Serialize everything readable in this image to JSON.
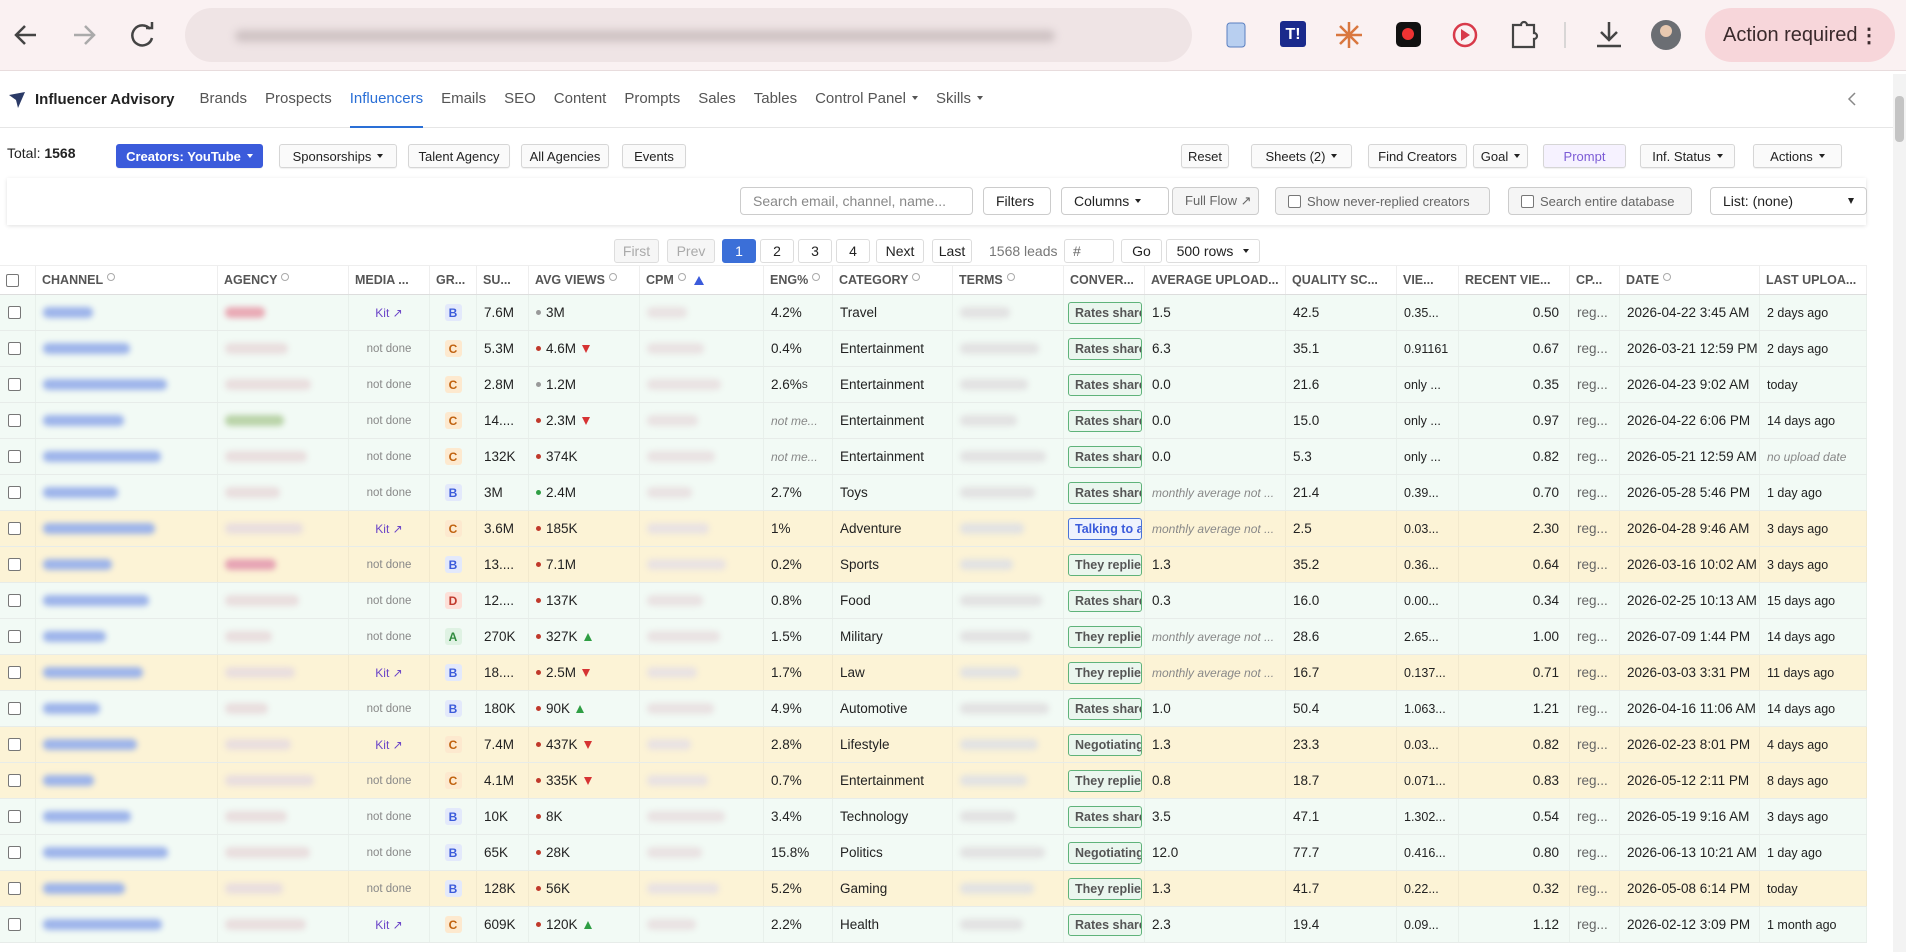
{
  "browser": {
    "action_required": "Action required"
  },
  "nav": {
    "brand": "Influencer Advisory",
    "items": [
      {
        "label": "Brands"
      },
      {
        "label": "Prospects"
      },
      {
        "label": "Influencers",
        "active": true
      },
      {
        "label": "Emails"
      },
      {
        "label": "SEO"
      },
      {
        "label": "Content"
      },
      {
        "label": "Prompts"
      },
      {
        "label": "Sales"
      },
      {
        "label": "Tables"
      },
      {
        "label": "Control Panel",
        "dropdown": true
      },
      {
        "label": "Skills",
        "dropdown": true
      }
    ]
  },
  "toolbar": {
    "total_label": "Total:",
    "total": 1568,
    "left": [
      {
        "label": "Creators: YouTube",
        "dropdown": true,
        "primary": true
      },
      {
        "label": "Sponsorships",
        "dropdown": true
      },
      {
        "label": "Talent Agency"
      },
      {
        "label": "All Agencies"
      },
      {
        "label": "Events"
      }
    ],
    "right": [
      {
        "label": "Reset"
      },
      {
        "label": "Sheets (2)",
        "dropdown": true
      },
      {
        "label": "Find Creators"
      },
      {
        "label": "Goal",
        "dropdown": true
      },
      {
        "label": "Prompt",
        "accent": true
      },
      {
        "label": "Inf. Status",
        "dropdown": true
      },
      {
        "label": "Actions",
        "dropdown": true
      }
    ]
  },
  "search": {
    "placeholder": "Search email, channel, name...",
    "filters": "Filters",
    "columns": "Columns",
    "full_flow": "Full Flow ↗",
    "never_replied": "Show never-replied creators",
    "entire_db": "Search entire database",
    "list": "List: (none)"
  },
  "pagination": {
    "first": "First",
    "prev": "Prev",
    "pages": [
      1,
      2,
      3,
      4
    ],
    "current": 1,
    "next": "Next",
    "last": "Last",
    "leads": "1568 leads",
    "page_input": "#",
    "go": "Go",
    "rows": "500 rows"
  },
  "table": {
    "columns": [
      {
        "label": "CHANNEL",
        "info": true
      },
      {
        "label": "AGENCY",
        "info": true
      },
      {
        "label": "MEDIA ..."
      },
      {
        "label": "GR..."
      },
      {
        "label": "SU..."
      },
      {
        "label": "AVG VIEWS",
        "info": true
      },
      {
        "label": "CPM",
        "info": true,
        "sort": "asc"
      },
      {
        "label": "ENG%",
        "info": true
      },
      {
        "label": "CATEGORY",
        "info": true
      },
      {
        "label": "TERMS",
        "info": true
      },
      {
        "label": "CONVER..."
      },
      {
        "label": "AVERAGE UPLOAD..."
      },
      {
        "label": "QUALITY SC..."
      },
      {
        "label": "VIE..."
      },
      {
        "label": "RECENT VIE..."
      },
      {
        "label": "CP..."
      },
      {
        "label": "DATE",
        "info": true
      },
      {
        "label": "LAST UPLOA..."
      }
    ],
    "rows": [
      {
        "media": "Kit ↗",
        "grade": "B",
        "subs": "7.6M",
        "avg_views": "3M",
        "dot": "grey",
        "eng": "4.2%",
        "category": "Travel",
        "stage": "Rates share",
        "avg_upload": "1.5",
        "quality": "42.5",
        "views": "0.35...",
        "recent": "0.50",
        "cp": "reg...",
        "date": "2026-04-22 3:45 AM",
        "last_upload": "2 days ago"
      },
      {
        "media": "not done",
        "grade": "C",
        "subs": "5.3M",
        "avg_views": "4.6M",
        "dot": "red",
        "trend": "down",
        "eng": "0.4%",
        "category": "Entertainment",
        "stage": "Rates share",
        "avg_upload": "6.3",
        "quality": "35.1",
        "views": "0.91161",
        "recent": "0.67",
        "cp": "reg...",
        "date": "2026-03-21 12:59 PM",
        "last_upload": "2 days ago"
      },
      {
        "media": "not done",
        "grade": "C",
        "subs": "2.8M",
        "avg_views": "1.2M",
        "dot": "grey",
        "eng": "2.6%",
        "eng_sup": "S",
        "category": "Entertainment",
        "stage": "Rates share",
        "avg_upload": "0.0",
        "quality": "21.6",
        "views": "only ...",
        "recent": "0.35",
        "cp": "reg...",
        "date": "2026-04-23 9:02 AM",
        "last_upload": "today"
      },
      {
        "media": "not done",
        "grade": "C",
        "subs": "14....",
        "avg_views": "2.3M",
        "dot": "red",
        "trend": "down",
        "eng_note": "not me...",
        "category": "Entertainment",
        "stage": "Rates share",
        "avg_upload": "0.0",
        "quality": "15.0",
        "views": "only ...",
        "recent": "0.97",
        "cp": "reg...",
        "date": "2026-04-22 6:06 PM",
        "last_upload": "14 days ago"
      },
      {
        "media": "not done",
        "grade": "C",
        "subs": "132K",
        "avg_views": "374K",
        "dot": "red",
        "eng_note": "not me...",
        "category": "Entertainment",
        "stage": "Rates share",
        "avg_upload": "0.0",
        "quality": "5.3",
        "views": "only ...",
        "recent": "0.82",
        "cp": "reg...",
        "date": "2026-05-21 12:59 AM",
        "last_upload_note": "no upload date"
      },
      {
        "media": "not done",
        "grade": "B",
        "subs": "3M",
        "avg_views": "2.4M",
        "dot": "green",
        "eng": "2.7%",
        "category": "Toys",
        "stage": "Rates share",
        "avg_upload_note": "monthly average not ...",
        "quality": "21.4",
        "views": "0.39...",
        "recent": "0.70",
        "cp": "reg...",
        "date": "2026-05-28 5:46 PM",
        "last_upload": "1 day ago"
      },
      {
        "media": "Kit ↗",
        "grade": "C",
        "subs": "3.6M",
        "avg_views": "185K",
        "dot": "red",
        "eng": "1%",
        "category": "Adventure",
        "stage": "Talking to a",
        "stage_tone": "blue",
        "avg_upload_note": "monthly average not ...",
        "quality": "2.5",
        "views": "0.03...",
        "recent": "2.30",
        "cp": "reg...",
        "date": "2026-04-28 9:46 AM",
        "last_upload": "3 days ago",
        "highlight": true
      },
      {
        "media": "not done",
        "grade": "B",
        "subs": "13....",
        "avg_views": "7.1M",
        "dot": "red",
        "eng": "0.2%",
        "category": "Sports",
        "stage": "They replie",
        "avg_upload": "1.3",
        "quality": "35.2",
        "views": "0.36...",
        "recent": "0.64",
        "cp": "reg...",
        "date": "2026-03-16 10:02 AM",
        "last_upload": "3 days ago",
        "highlight": true
      },
      {
        "media": "not done",
        "grade": "D",
        "subs": "12....",
        "avg_views": "137K",
        "dot": "red",
        "eng": "0.8%",
        "category": "Food",
        "stage": "Rates share",
        "avg_upload": "0.3",
        "quality": "16.0",
        "views": "0.00...",
        "recent": "0.34",
        "cp": "reg...",
        "date": "2026-02-25 10:13 AM",
        "last_upload": "15 days ago"
      },
      {
        "media": "not done",
        "grade": "A",
        "subs": "270K",
        "avg_views": "327K",
        "dot": "red",
        "trend": "up",
        "eng": "1.5%",
        "category": "Military",
        "stage": "They replie",
        "avg_upload_note": "monthly average not ...",
        "quality": "28.6",
        "views": "2.65...",
        "recent": "1.00",
        "cp": "reg...",
        "date": "2026-07-09 1:44 PM",
        "last_upload": "14 days ago"
      },
      {
        "media": "Kit ↗",
        "grade": "B",
        "subs": "18....",
        "avg_views": "2.5M",
        "dot": "red",
        "trend": "down",
        "eng": "1.7%",
        "category": "Law",
        "stage": "They replie",
        "avg_upload_note": "monthly average not ...",
        "quality": "16.7",
        "views": "0.137...",
        "recent": "0.71",
        "cp": "reg...",
        "date": "2026-03-03 3:31 PM",
        "last_upload": "11 days ago",
        "highlight": true
      },
      {
        "media": "not done",
        "grade": "B",
        "subs": "180K",
        "avg_views": "90K",
        "dot": "red",
        "trend": "up",
        "eng": "4.9%",
        "category": "Automotive",
        "stage": "Rates share",
        "avg_upload": "1.0",
        "quality": "50.4",
        "views": "1.063...",
        "recent": "1.21",
        "cp": "reg...",
        "date": "2026-04-16 11:06 AM",
        "last_upload": "14 days ago"
      },
      {
        "media": "Kit ↗",
        "grade": "C",
        "subs": "7.4M",
        "avg_views": "437K",
        "dot": "red",
        "trend": "down",
        "eng": "2.8%",
        "category": "Lifestyle",
        "stage": "Negotiating",
        "avg_upload": "1.3",
        "quality": "23.3",
        "views": "0.03...",
        "recent": "0.82",
        "cp": "reg...",
        "date": "2026-02-23 8:01 PM",
        "last_upload": "4 days ago",
        "highlight": true
      },
      {
        "media": "not done",
        "grade": "C",
        "subs": "4.1M",
        "avg_views": "335K",
        "dot": "red",
        "trend": "down",
        "eng": "0.7%",
        "category": "Entertainment",
        "stage": "They replie",
        "avg_upload": "0.8",
        "quality": "18.7",
        "views": "0.071...",
        "recent": "0.83",
        "cp": "reg...",
        "date": "2026-05-12 2:11 PM",
        "last_upload": "8 days ago",
        "highlight": true
      },
      {
        "media": "not done",
        "grade": "B",
        "subs": "10K",
        "avg_views": "8K",
        "dot": "red",
        "eng": "3.4%",
        "category": "Technology",
        "stage": "Rates share",
        "avg_upload": "3.5",
        "quality": "47.1",
        "views": "1.302...",
        "recent": "0.54",
        "cp": "reg...",
        "date": "2026-05-19 9:16 AM",
        "last_upload": "3 days ago"
      },
      {
        "media": "not done",
        "grade": "B",
        "subs": "65K",
        "avg_views": "28K",
        "dot": "red",
        "eng": "15.8%",
        "category": "Politics",
        "stage": "Negotiating",
        "avg_upload": "12.0",
        "quality": "77.7",
        "views": "0.416...",
        "recent": "0.80",
        "cp": "reg...",
        "date": "2026-06-13 10:21 AM",
        "last_upload": "1 day ago"
      },
      {
        "media": "not done",
        "grade": "B",
        "subs": "128K",
        "avg_views": "56K",
        "dot": "red",
        "eng": "5.2%",
        "category": "Gaming",
        "stage": "They replie",
        "avg_upload": "1.3",
        "quality": "41.7",
        "views": "0.22...",
        "recent": "0.32",
        "cp": "reg...",
        "date": "2026-05-08 6:14 PM",
        "last_upload": "today",
        "highlight": true
      },
      {
        "media": "Kit ↗",
        "grade": "C",
        "subs": "609K",
        "avg_views": "120K",
        "dot": "red",
        "trend": "up",
        "eng": "2.2%",
        "category": "Health",
        "stage": "Rates share",
        "avg_upload": "2.3",
        "quality": "19.4",
        "views": "0.09...",
        "recent": "1.12",
        "cp": "reg...",
        "date": "2026-02-12 3:09 PM",
        "last_upload": "1 month ago"
      }
    ]
  }
}
